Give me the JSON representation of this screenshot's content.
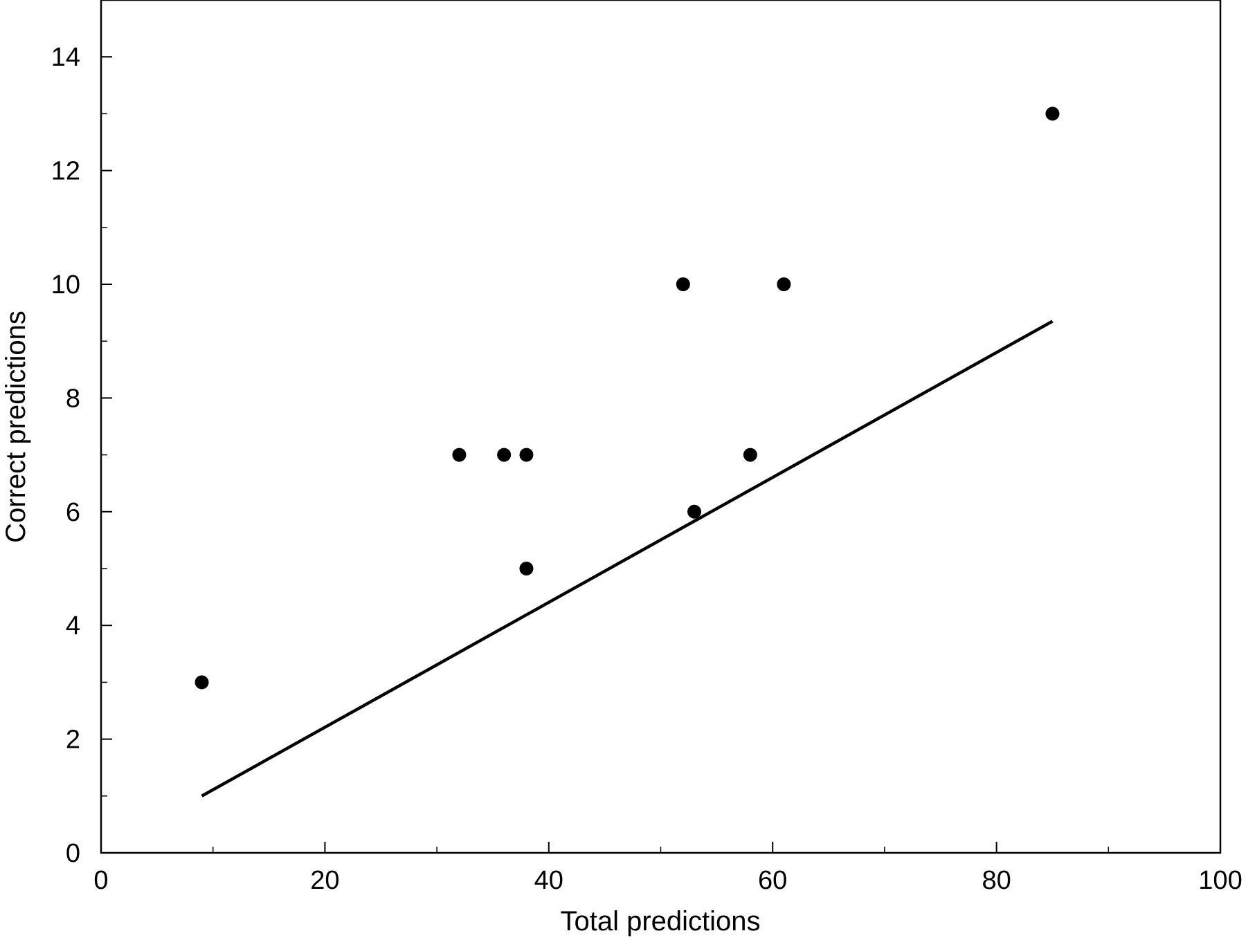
{
  "chart_data": {
    "type": "scatter",
    "title": "",
    "xlabel": "Total predictions",
    "ylabel": "Correct predictions",
    "xlim": [
      0,
      100
    ],
    "ylim": [
      0,
      15
    ],
    "x_ticks": [
      0,
      20,
      40,
      60,
      80,
      100
    ],
    "x_tick_labels": [
      "0",
      "20",
      "40",
      "60",
      "80",
      "100"
    ],
    "x_minor_ticks": [
      10,
      30,
      50,
      70,
      90
    ],
    "y_ticks": [
      0,
      2,
      4,
      6,
      8,
      10,
      12,
      14
    ],
    "y_tick_labels": [
      "0",
      "2",
      "4",
      "6",
      "8",
      "10",
      "12",
      "14"
    ],
    "y_minor_ticks": [
      1,
      3,
      5,
      7,
      9,
      11,
      13
    ],
    "grid": false,
    "legend": "none",
    "series": [
      {
        "type": "scatter",
        "x": [
          9,
          32,
          36,
          38,
          38,
          52,
          53,
          58,
          61,
          85
        ],
        "y": [
          3,
          7,
          7,
          7,
          5,
          10,
          6,
          7,
          10,
          13
        ],
        "color": "#000000"
      },
      {
        "type": "line",
        "x": [
          9,
          85
        ],
        "y": [
          1,
          9.35
        ],
        "color": "#000000"
      }
    ]
  }
}
